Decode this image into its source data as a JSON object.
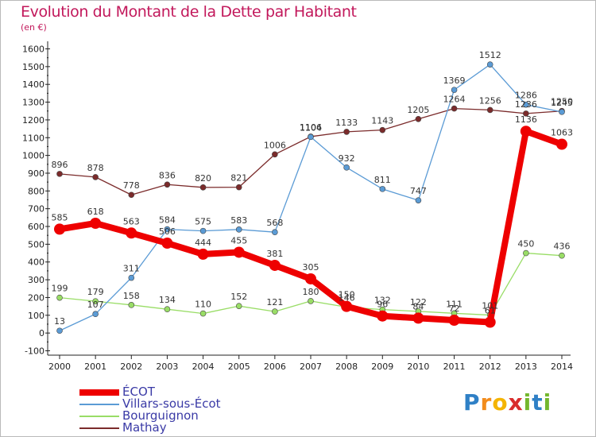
{
  "title": "Evolution du Montant de la Dette par Habitant",
  "unit": "(en €)",
  "brand": {
    "text": "Proxiti",
    "letters": [
      {
        "ch": "P",
        "color": "#2f80c6"
      },
      {
        "ch": "r",
        "color": "#f28c1c"
      },
      {
        "ch": "o",
        "color": "#f4b400"
      },
      {
        "ch": "x",
        "color": "#d92c2c"
      },
      {
        "ch": "i",
        "color": "#74b72e"
      },
      {
        "ch": "t",
        "color": "#2f80c6"
      },
      {
        "ch": "i",
        "color": "#74b72e"
      }
    ]
  },
  "chart_data": {
    "type": "line",
    "title": "Evolution du Montant de la Dette par Habitant",
    "ylabel": "(en €)",
    "xlabel": "",
    "x": [
      2000,
      2001,
      2002,
      2003,
      2004,
      2005,
      2006,
      2007,
      2008,
      2009,
      2010,
      2011,
      2012,
      2013,
      2014
    ],
    "x_tick_labels": [
      "2000",
      "2001",
      "2002",
      "2003",
      "2004",
      "2005",
      "2006",
      "2007",
      "2008",
      "2009",
      "2010",
      "2011",
      "2012",
      "2013",
      "2014"
    ],
    "ylim": [
      -100,
      1600
    ],
    "y_ticks": [
      -100,
      0,
      100,
      200,
      300,
      400,
      500,
      600,
      700,
      800,
      900,
      1000,
      1100,
      1200,
      1300,
      1400,
      1500,
      1600
    ],
    "grid": false,
    "legend_position": "bottom-left",
    "series": [
      {
        "name": "ÉCOT",
        "color": "#ee0000",
        "values": [
          585,
          618,
          563,
          506,
          444,
          455,
          381,
          305,
          150,
          96,
          84,
          72,
          61,
          1136,
          1063
        ]
      },
      {
        "name": "Villars-sous-Écot",
        "color": "#5b9bd5",
        "values": [
          13,
          107,
          311,
          584,
          575,
          583,
          568,
          1104,
          932,
          811,
          747,
          1369,
          1512,
          1286,
          1245
        ]
      },
      {
        "name": "Bourguignon",
        "color": "#99dd66",
        "values": [
          199,
          179,
          158,
          134,
          110,
          152,
          121,
          180,
          146,
          132,
          122,
          111,
          101,
          450,
          436
        ]
      },
      {
        "name": "Mathay",
        "color": "#7b2b2b",
        "values": [
          896,
          878,
          778,
          836,
          820,
          821,
          1006,
          1106,
          1133,
          1143,
          1205,
          1264,
          1256,
          1236,
          1250
        ]
      }
    ]
  }
}
